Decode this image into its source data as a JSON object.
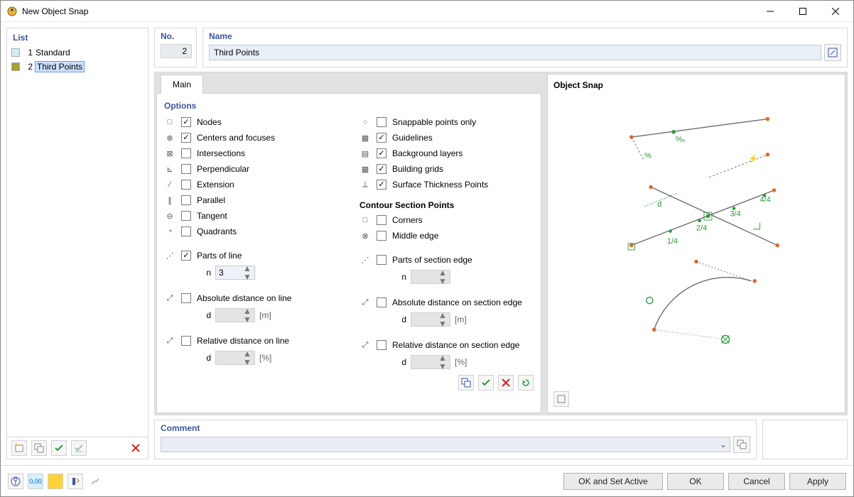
{
  "window": {
    "title": "New Object Snap"
  },
  "list": {
    "header": "List",
    "items": [
      {
        "n": "1",
        "name": "Standard",
        "swatch": "#cdeef3",
        "selected": false
      },
      {
        "n": "2",
        "name": "Third Points",
        "swatch": "#a5a03a",
        "selected": true
      }
    ]
  },
  "no": {
    "header": "No.",
    "value": "2"
  },
  "name": {
    "header": "Name",
    "value": "Third Points"
  },
  "tab": {
    "main": "Main"
  },
  "options": {
    "header": "Options",
    "left": [
      {
        "key": "nodes",
        "label": "Nodes",
        "checked": true,
        "glyph": "□"
      },
      {
        "key": "centers",
        "label": "Centers and focuses",
        "checked": true,
        "glyph": "⊗"
      },
      {
        "key": "intersections",
        "label": "Intersections",
        "checked": false,
        "glyph": "⊠"
      },
      {
        "key": "perpendicular",
        "label": "Perpendicular",
        "checked": false,
        "glyph": "⊾"
      },
      {
        "key": "extension",
        "label": "Extension",
        "checked": false,
        "glyph": "∕"
      },
      {
        "key": "parallel",
        "label": "Parallel",
        "checked": false,
        "glyph": "∥"
      },
      {
        "key": "tangent",
        "label": "Tangent",
        "checked": false,
        "glyph": "⊖"
      },
      {
        "key": "quadrants",
        "label": "Quadrants",
        "checked": false,
        "glyph": "◔"
      }
    ],
    "parts_of_line": {
      "label": "Parts of line",
      "checked": true,
      "glyph": "⋰",
      "n_label": "n",
      "n_value": "3"
    },
    "abs_line": {
      "label": "Absolute distance on line",
      "checked": false,
      "glyph": "⤢",
      "d_label": "d",
      "unit": "[m]"
    },
    "rel_line": {
      "label": "Relative distance on line",
      "checked": false,
      "glyph": "⤢",
      "d_label": "d",
      "unit": "[%]"
    },
    "right": [
      {
        "key": "snappable",
        "label": "Snappable points only",
        "checked": false,
        "glyph": "⁘"
      },
      {
        "key": "guidelines",
        "label": "Guidelines",
        "checked": true,
        "glyph": "▦"
      },
      {
        "key": "bglayers",
        "label": "Background layers",
        "checked": true,
        "glyph": "▤"
      },
      {
        "key": "grids",
        "label": "Building grids",
        "checked": true,
        "glyph": "▦"
      },
      {
        "key": "surface",
        "label": "Surface Thickness Points",
        "checked": true,
        "glyph": "⟂"
      }
    ],
    "contour_header": "Contour Section Points",
    "contour": [
      {
        "key": "corners",
        "label": "Corners",
        "checked": false,
        "glyph": "□"
      },
      {
        "key": "middle",
        "label": "Middle edge",
        "checked": false,
        "glyph": "⊗"
      }
    ],
    "parts_edge": {
      "label": "Parts of section edge",
      "checked": false,
      "glyph": "⋰",
      "n_label": "n"
    },
    "abs_edge": {
      "label": "Absolute distance on section edge",
      "checked": false,
      "glyph": "⤢",
      "d_label": "d",
      "unit": "[m]"
    },
    "rel_edge": {
      "label": "Relative distance on section edge",
      "checked": false,
      "glyph": "⤢",
      "d_label": "d",
      "unit": "[%]"
    }
  },
  "preview": {
    "header": "Object Snap",
    "colors": {
      "line": "#6b6b6b",
      "accent": "#2a9b3a",
      "point": "#d96b2f",
      "highlight": "#2a9b3a"
    },
    "labels": {
      "pct": "%",
      "pctx": "%ₓ",
      "d": "d",
      "f14": "1/4",
      "f24": "2/4",
      "f34": "3/4",
      "f44": "4/4"
    }
  },
  "comment": {
    "header": "Comment"
  },
  "footer": {
    "ok_set": "OK and Set Active",
    "ok": "OK",
    "cancel": "Cancel",
    "apply": "Apply"
  }
}
